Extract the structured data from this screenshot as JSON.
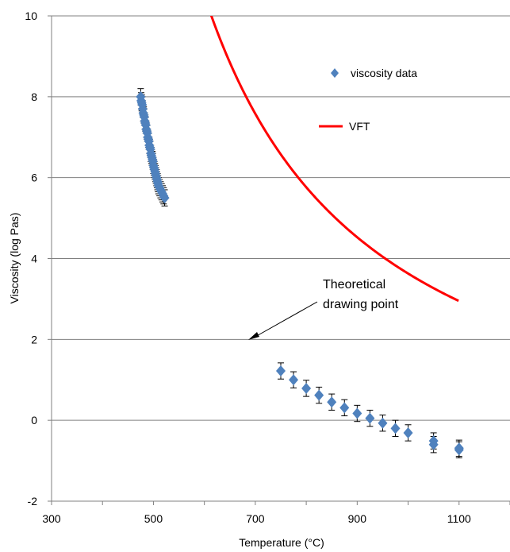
{
  "chart_data": {
    "type": "scatter",
    "title": "",
    "xlabel": "Temperature (°C)",
    "ylabel": "Viscosity (log Pas)",
    "xlim": [
      300,
      1200
    ],
    "ylim": [
      -2,
      10
    ],
    "x_ticks": [
      300,
      500,
      700,
      900,
      1100
    ],
    "y_ticks": [
      -2,
      0,
      2,
      4,
      6,
      8,
      10
    ],
    "grid": "horizontal",
    "legend_placement": "top-right",
    "series": [
      {
        "name": "viscosity data",
        "kind": "markers",
        "marker": "diamond",
        "color": "#4F81BD",
        "points": [
          [
            475,
            8.0
          ],
          [
            476,
            7.9
          ],
          [
            477,
            7.85
          ],
          [
            478,
            7.8
          ],
          [
            479,
            7.7
          ],
          [
            480,
            7.6
          ],
          [
            481,
            7.55
          ],
          [
            482,
            7.5
          ],
          [
            483,
            7.4
          ],
          [
            484,
            7.35
          ],
          [
            485,
            7.3
          ],
          [
            486,
            7.2
          ],
          [
            487,
            7.15
          ],
          [
            488,
            7.1
          ],
          [
            489,
            7.0
          ],
          [
            490,
            6.95
          ],
          [
            491,
            6.9
          ],
          [
            492,
            6.8
          ],
          [
            493,
            6.75
          ],
          [
            494,
            6.7
          ],
          [
            495,
            6.6
          ],
          [
            496,
            6.55
          ],
          [
            497,
            6.5
          ],
          [
            498,
            6.45
          ],
          [
            499,
            6.4
          ],
          [
            500,
            6.3
          ],
          [
            501,
            6.25
          ],
          [
            502,
            6.2
          ],
          [
            503,
            6.15
          ],
          [
            504,
            6.1
          ],
          [
            505,
            6.05
          ],
          [
            506,
            6.0
          ],
          [
            507,
            5.95
          ],
          [
            508,
            5.9
          ],
          [
            509,
            5.85
          ],
          [
            510,
            5.8
          ],
          [
            512,
            5.75
          ],
          [
            514,
            5.7
          ],
          [
            516,
            5.65
          ],
          [
            518,
            5.6
          ],
          [
            520,
            5.55
          ],
          [
            522,
            5.5
          ],
          [
            750,
            1.22
          ],
          [
            775,
            1.0
          ],
          [
            800,
            0.79
          ],
          [
            825,
            0.62
          ],
          [
            850,
            0.45
          ],
          [
            875,
            0.31
          ],
          [
            900,
            0.17
          ],
          [
            925,
            0.05
          ],
          [
            950,
            -0.07
          ],
          [
            975,
            -0.2
          ],
          [
            1000,
            -0.31
          ],
          [
            1050,
            -0.51
          ],
          [
            1050,
            -0.6
          ],
          [
            1100,
            -0.69
          ],
          [
            1100,
            -0.73
          ]
        ],
        "error": 0.2
      },
      {
        "name": "VFT",
        "kind": "line",
        "color": "#FF0000",
        "vft": {
          "A": -2.0,
          "B": 4095,
          "C": 272.5
        },
        "x_range": [
          455,
          1100
        ]
      }
    ],
    "annotations": [
      {
        "text_lines": [
          "Theoretical",
          "drawing point"
        ],
        "point": [
          678,
          2.0
        ]
      }
    ]
  }
}
